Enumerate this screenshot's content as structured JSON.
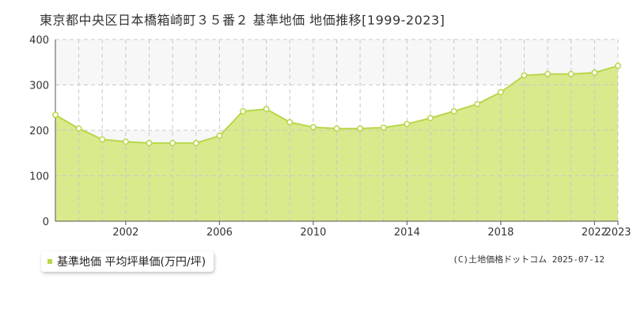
{
  "header": {
    "title": "東京都中央区日本橋箱崎町３５番２ 基準地価 地価推移[1999-2023]"
  },
  "legend": {
    "label": "基準地価 平均坪単価(万円/坪)"
  },
  "footer": {
    "copyright": "(C)土地価格ドットコム 2025-07-12"
  },
  "colors": {
    "fill": "#d8ea8c",
    "line": "#b8d64a",
    "point_fill": "#ffffff",
    "band": "#f7f7f7"
  },
  "chart_data": {
    "type": "area",
    "x": [
      1999,
      2000,
      2001,
      2002,
      2003,
      2004,
      2005,
      2006,
      2007,
      2008,
      2009,
      2010,
      2011,
      2012,
      2013,
      2014,
      2015,
      2016,
      2017,
      2018,
      2019,
      2020,
      2021,
      2022,
      2023
    ],
    "series": [
      {
        "name": "基準地価 平均坪単価(万円/坪)",
        "values": [
          234,
          204,
          180,
          175,
          172,
          172,
          172,
          188,
          242,
          247,
          218,
          207,
          204,
          204,
          206,
          214,
          227,
          242,
          258,
          284,
          321,
          324,
          324,
          327,
          342
        ]
      }
    ],
    "xlim": [
      1999,
      2023
    ],
    "ylim": [
      0,
      400
    ],
    "yticks": [
      0,
      100,
      200,
      300,
      400
    ],
    "xtick_labels": [
      "2002",
      "2006",
      "2010",
      "2014",
      "2018",
      "2022",
      "2023"
    ],
    "xtick_values": [
      2002,
      2006,
      2010,
      2014,
      2018,
      2022,
      2023
    ],
    "grid": true
  }
}
